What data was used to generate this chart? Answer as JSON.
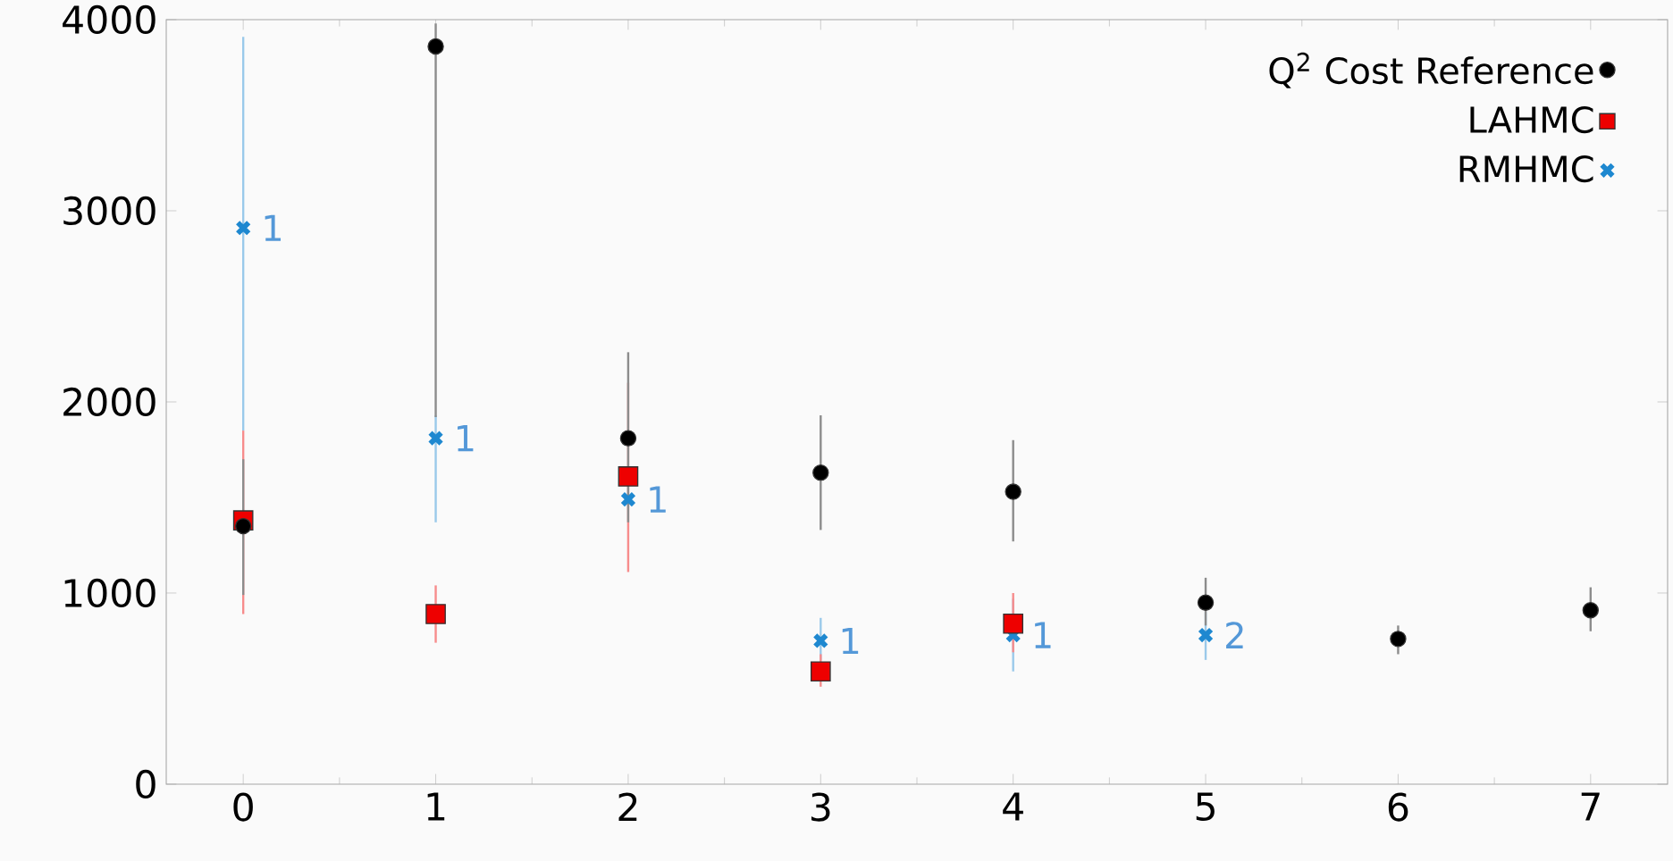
{
  "chart_data": {
    "type": "scatter",
    "xlim": [
      -0.4,
      7.4
    ],
    "ylim": [
      0,
      4000
    ],
    "xticks": [
      0,
      1,
      2,
      3,
      4,
      5,
      6,
      7
    ],
    "yticks": [
      0,
      1000,
      2000,
      3000,
      4000
    ],
    "legend": "top right",
    "grid": false,
    "series": [
      {
        "name": "Q$^{2}$ Cost Reference",
        "color": "#000000",
        "marker": "circle",
        "x": [
          0,
          1,
          2,
          3,
          4,
          5,
          6,
          7
        ],
        "values": [
          1350,
          3860,
          1810,
          1630,
          1530,
          950,
          760,
          910
        ],
        "errors": [
          [
            990,
            1700
          ],
          [
            1920,
            3980
          ],
          [
            1370,
            2260
          ],
          [
            1330,
            1930
          ],
          [
            1270,
            1800
          ],
          [
            830,
            1080
          ],
          [
            680,
            830
          ],
          [
            800,
            1030
          ]
        ]
      },
      {
        "name": "LAHMC",
        "color": "#ee0000",
        "marker": "square",
        "x": [
          0,
          1,
          2,
          3,
          4
        ],
        "values": [
          1380,
          890,
          1610,
          590,
          840
        ],
        "errors": [
          [
            890,
            1850
          ],
          [
            740,
            1040
          ],
          [
            1110,
            2100
          ],
          [
            510,
            680
          ],
          [
            690,
            1000
          ]
        ]
      },
      {
        "name": "RMHMC",
        "color": "#1e88d0",
        "marker": "cross",
        "x": [
          0,
          1,
          2,
          3,
          4,
          5
        ],
        "values": [
          2910,
          1810,
          1490,
          750,
          780,
          780
        ],
        "errors": [
          [
            1850,
            3910
          ],
          [
            1370,
            1930
          ],
          null,
          [
            650,
            870
          ],
          [
            590,
            970
          ],
          [
            650,
            900
          ]
        ]
      }
    ],
    "annotations": [
      {
        "text": "1",
        "x": 0,
        "y": 2910
      },
      {
        "text": "1",
        "x": 1,
        "y": 1810
      },
      {
        "text": "1",
        "x": 2,
        "y": 1490
      },
      {
        "text": "1",
        "x": 3,
        "y": 750
      },
      {
        "text": "1",
        "x": 4,
        "y": 780
      },
      {
        "text": "2",
        "x": 5,
        "y": 780
      }
    ]
  }
}
